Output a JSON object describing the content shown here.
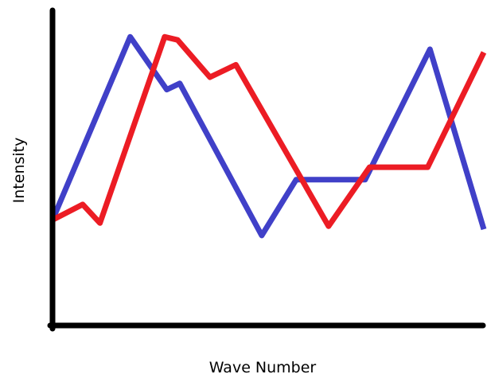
{
  "chart_data": {
    "type": "line",
    "title": "",
    "xlabel": "Wave Number",
    "ylabel": "Intensity",
    "xlim": [
      0,
      100
    ],
    "ylim": [
      0,
      100
    ],
    "grid": false,
    "ticks": false,
    "series": [
      {
        "color": "#4040c8",
        "points": [
          [
            0,
            34
          ],
          [
            18,
            93
          ],
          [
            26.5,
            76
          ],
          [
            29.5,
            78
          ],
          [
            48.5,
            29
          ],
          [
            56.5,
            47
          ],
          [
            72.5,
            47
          ],
          [
            87.5,
            89
          ],
          [
            100,
            31
          ]
        ]
      },
      {
        "color": "#ec1c24",
        "points": [
          [
            0,
            34
          ],
          [
            7,
            39
          ],
          [
            11,
            33
          ],
          [
            26,
            93
          ],
          [
            29,
            92
          ],
          [
            36.5,
            80
          ],
          [
            42.5,
            84
          ],
          [
            64,
            32
          ],
          [
            73.5,
            51
          ],
          [
            87,
            51
          ],
          [
            100,
            88
          ]
        ]
      }
    ]
  }
}
